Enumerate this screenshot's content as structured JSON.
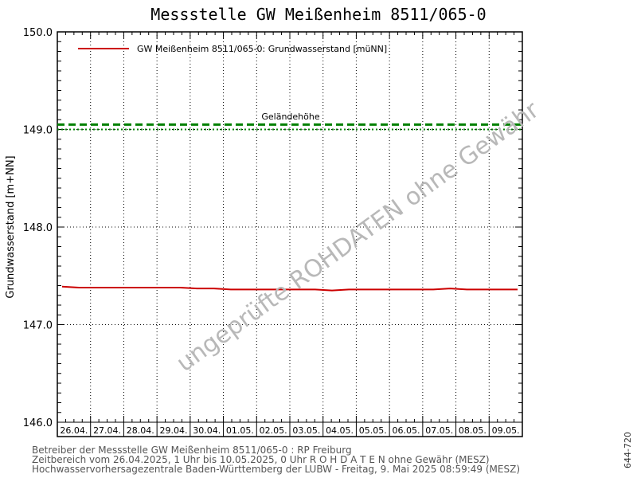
{
  "chart_data": {
    "type": "line",
    "title": "Messstelle GW Meißenheim 8511/065-0",
    "ylabel": "Grundwasserstand [m+NN]",
    "ylim": [
      146.0,
      150.0
    ],
    "yticks": [
      146.0,
      147.0,
      148.0,
      149.0,
      150.0
    ],
    "x_categories": [
      "26.04.",
      "27.04.",
      "28.04.",
      "29.04.",
      "30.04.",
      "01.05.",
      "02.05.",
      "03.05.",
      "04.05.",
      "05.05.",
      "06.05.",
      "07.05.",
      "08.05.",
      "09.05."
    ],
    "legend_position": "top-left",
    "grid": true,
    "series": [
      {
        "name": "GW Meißenheim 8511/065-0: Grundwasserstand  [müNN]",
        "color": "#cc0000",
        "x": [
          0,
          0.5,
          1,
          1.5,
          2,
          2.5,
          3,
          3.5,
          4,
          4.5,
          5,
          5.5,
          6,
          6.5,
          7,
          7.5,
          8,
          8.5,
          9,
          9.5,
          10,
          10.5,
          11,
          11.5,
          12,
          12.5,
          13,
          13.5
        ],
        "values": [
          147.39,
          147.38,
          147.38,
          147.38,
          147.38,
          147.38,
          147.38,
          147.38,
          147.37,
          147.37,
          147.36,
          147.36,
          147.36,
          147.36,
          147.36,
          147.36,
          147.35,
          147.36,
          147.36,
          147.36,
          147.36,
          147.36,
          147.36,
          147.37,
          147.36,
          147.36,
          147.36,
          147.36
        ]
      }
    ],
    "reference_lines": [
      {
        "label": "Geländehöhe",
        "value": 149.05,
        "color": "#008000",
        "style": "dashed"
      },
      {
        "label": "",
        "value": 149.0,
        "color": "#008000",
        "style": "dotted"
      }
    ]
  },
  "footer": {
    "line1": "Betreiber der Messstelle GW Meißenheim 8511/065-0 : RP Freiburg",
    "line2": "Zeitbereich vom 26.04.2025, 1 Uhr bis 10.05.2025, 0 Uhr   R O H D A T E N ohne Gewähr (MESZ)",
    "line3": "Hochwasservorhersagezentrale Baden-Württemberg der LUBW - Freitag, 9. Mai 2025 08:59:49 (MESZ)"
  },
  "watermark": "ungeprüfte ROHDATEN ohne Gewähr",
  "code": "644-720"
}
